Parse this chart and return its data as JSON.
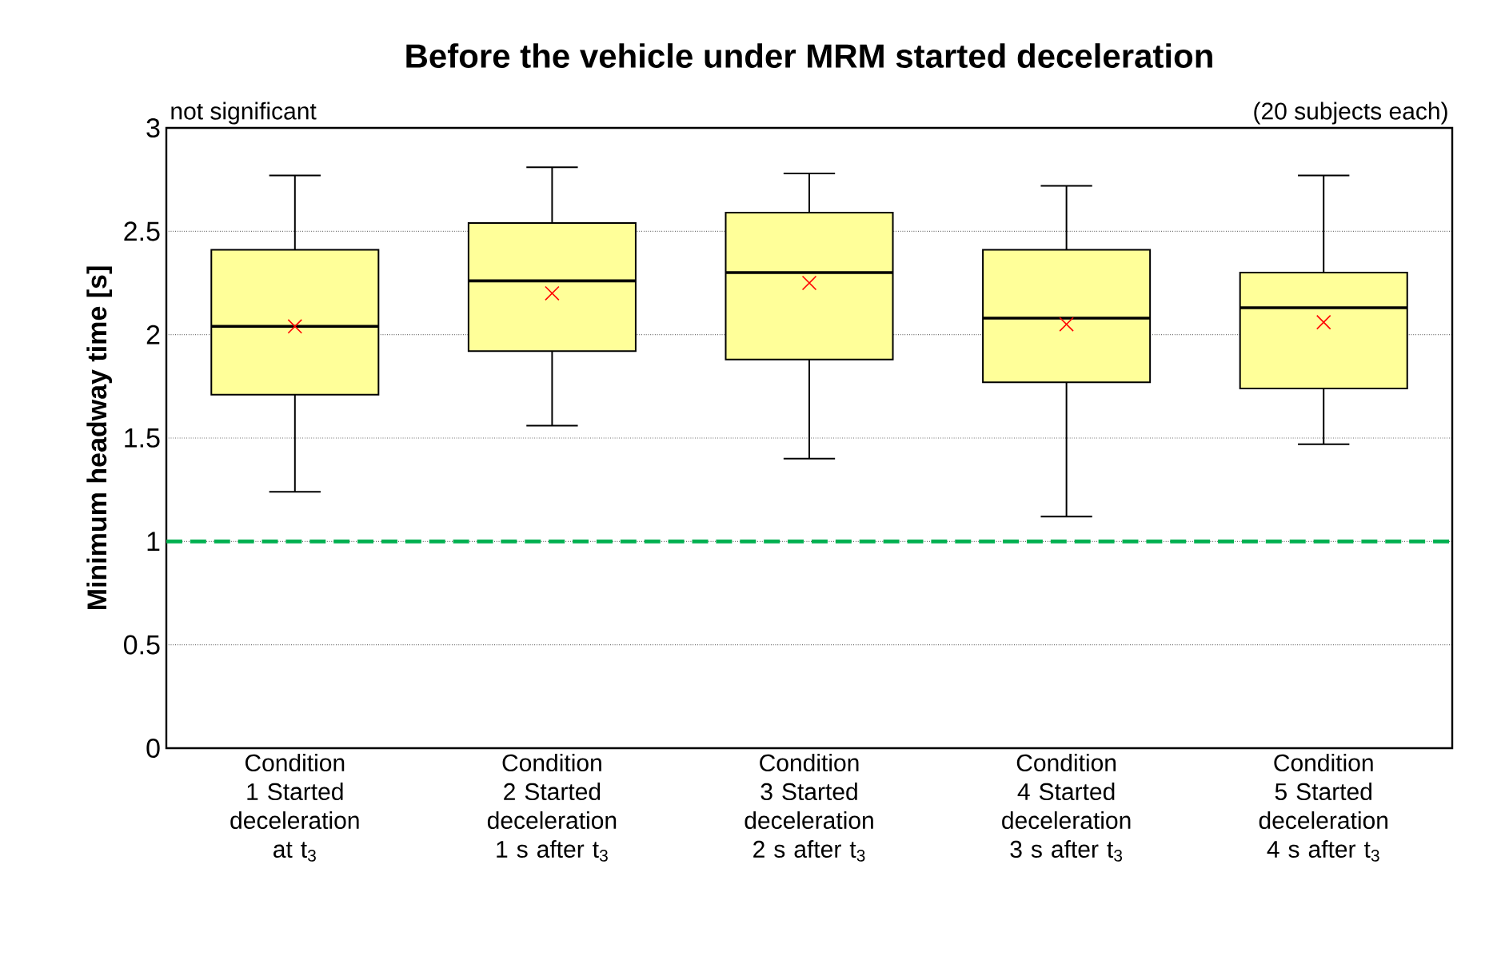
{
  "chart_data": {
    "type": "box",
    "title": "Before the vehicle under MRM started deceleration",
    "ylabel": "Minimum headway time [s]",
    "annotations": [
      "not significant",
      "(20 subjects each)"
    ],
    "categories": [
      "Condition 1 Started deceleration at t$_{3}$",
      "Condition 2 Started deceleration 1 s after t$_{3}$",
      "Condition 3 Started deceleration 2 s after t$_{3}$",
      "Condition 4 Started deceleration 3 s after t$_{3}$",
      "Condition 5 Started deceleration 4 s after t$_{3}$"
    ],
    "color": "#ffff99",
    "boxes": [
      {
        "low": 1.24,
        "q1": 1.71,
        "median": 2.04,
        "q3": 2.41,
        "high": 2.77,
        "mean": 2.04
      },
      {
        "low": 1.56,
        "q1": 1.92,
        "median": 2.26,
        "q3": 2.54,
        "high": 2.81,
        "mean": 2.2
      },
      {
        "low": 1.4,
        "q1": 1.88,
        "median": 2.3,
        "q3": 2.59,
        "high": 2.78,
        "mean": 2.25
      },
      {
        "low": 1.12,
        "q1": 1.77,
        "median": 2.08,
        "q3": 2.41,
        "high": 2.72,
        "mean": 2.05
      },
      {
        "low": 1.47,
        "q1": 1.74,
        "median": 2.13,
        "q3": 2.3,
        "high": 2.77,
        "mean": 2.06
      }
    ],
    "ylim": [
      0,
      3
    ],
    "yticks": [
      0,
      0.5,
      1,
      1.5,
      2,
      2.5,
      3
    ],
    "grid": "y",
    "ref_lines": [
      {
        "axis": "y",
        "value": 1,
        "color": "#00b050",
        "line_style": "dashed"
      }
    ]
  }
}
